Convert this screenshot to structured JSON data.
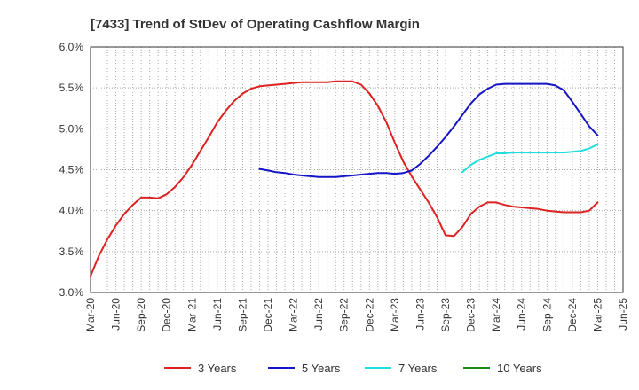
{
  "chart_data": {
    "type": "line",
    "title": "[7433]  Trend of StDev of Operating Cashflow Margin",
    "xlabel": "",
    "ylabel": "",
    "ylim": [
      3.0,
      6.0
    ],
    "y_ticks": [
      "3.0%",
      "3.5%",
      "4.0%",
      "4.5%",
      "5.0%",
      "5.5%",
      "6.0%"
    ],
    "x_ticks": [
      "Mar-20",
      "Jun-20",
      "Sep-20",
      "Dec-20",
      "Mar-21",
      "Jun-21",
      "Sep-21",
      "Dec-21",
      "Mar-22",
      "Jun-22",
      "Sep-22",
      "Dec-22",
      "Mar-23",
      "Jun-23",
      "Sep-23",
      "Dec-23",
      "Mar-24",
      "Jun-24",
      "Sep-24",
      "Dec-24",
      "Mar-25",
      "Jun-25"
    ],
    "grid": true,
    "legend_position": "bottom",
    "series": [
      {
        "name": "3 Years",
        "color": "#dd2222",
        "points": [
          [
            "Mar-20",
            3.2
          ],
          [
            "Apr-20",
            3.45
          ],
          [
            "May-20",
            3.65
          ],
          [
            "Jun-20",
            3.82
          ],
          [
            "Jul-20",
            3.96
          ],
          [
            "Aug-20",
            4.07
          ],
          [
            "Sep-20",
            4.16
          ],
          [
            "Oct-20",
            4.16
          ],
          [
            "Nov-20",
            4.15
          ],
          [
            "Dec-20",
            4.2
          ],
          [
            "Jan-21",
            4.29
          ],
          [
            "Feb-21",
            4.41
          ],
          [
            "Mar-21",
            4.56
          ],
          [
            "Apr-21",
            4.73
          ],
          [
            "May-21",
            4.9
          ],
          [
            "Jun-21",
            5.08
          ],
          [
            "Jul-21",
            5.22
          ],
          [
            "Aug-21",
            5.34
          ],
          [
            "Sep-21",
            5.43
          ],
          [
            "Oct-21",
            5.49
          ],
          [
            "Nov-21",
            5.52
          ],
          [
            "Dec-21",
            5.53
          ],
          [
            "Jan-22",
            5.54
          ],
          [
            "Feb-22",
            5.55
          ],
          [
            "Mar-22",
            5.56
          ],
          [
            "Apr-22",
            5.57
          ],
          [
            "May-22",
            5.57
          ],
          [
            "Jun-22",
            5.57
          ],
          [
            "Jul-22",
            5.57
          ],
          [
            "Aug-22",
            5.58
          ],
          [
            "Sep-22",
            5.58
          ],
          [
            "Oct-22",
            5.58
          ],
          [
            "Nov-22",
            5.54
          ],
          [
            "Dec-22",
            5.43
          ],
          [
            "Jan-23",
            5.28
          ],
          [
            "Feb-23",
            5.08
          ],
          [
            "Mar-23",
            4.83
          ],
          [
            "Apr-23",
            4.6
          ],
          [
            "May-23",
            4.42
          ],
          [
            "Jun-23",
            4.26
          ],
          [
            "Jul-23",
            4.1
          ],
          [
            "Aug-23",
            3.92
          ],
          [
            "Sep-23",
            3.7
          ],
          [
            "Oct-23",
            3.69
          ],
          [
            "Nov-23",
            3.8
          ],
          [
            "Dec-23",
            3.96
          ],
          [
            "Jan-24",
            4.05
          ],
          [
            "Feb-24",
            4.1
          ],
          [
            "Mar-24",
            4.1
          ],
          [
            "Apr-24",
            4.07
          ],
          [
            "May-24",
            4.05
          ],
          [
            "Jun-24",
            4.04
          ],
          [
            "Jul-24",
            4.03
          ],
          [
            "Aug-24",
            4.02
          ],
          [
            "Sep-24",
            4.0
          ],
          [
            "Oct-24",
            3.99
          ],
          [
            "Nov-24",
            3.98
          ],
          [
            "Dec-24",
            3.98
          ],
          [
            "Jan-25",
            3.98
          ],
          [
            "Feb-25",
            4.0
          ],
          [
            "Mar-25",
            4.1
          ]
        ]
      },
      {
        "name": "5 Years",
        "color": "#1515c8",
        "points": [
          [
            "Nov-21",
            4.51
          ],
          [
            "Dec-21",
            4.49
          ],
          [
            "Jan-22",
            4.47
          ],
          [
            "Feb-22",
            4.46
          ],
          [
            "Mar-22",
            4.44
          ],
          [
            "Apr-22",
            4.43
          ],
          [
            "May-22",
            4.42
          ],
          [
            "Jun-22",
            4.41
          ],
          [
            "Jul-22",
            4.41
          ],
          [
            "Aug-22",
            4.41
          ],
          [
            "Sep-22",
            4.42
          ],
          [
            "Oct-22",
            4.43
          ],
          [
            "Nov-22",
            4.44
          ],
          [
            "Dec-22",
            4.45
          ],
          [
            "Jan-23",
            4.46
          ],
          [
            "Feb-23",
            4.46
          ],
          [
            "Mar-23",
            4.45
          ],
          [
            "Apr-23",
            4.46
          ],
          [
            "May-23",
            4.49
          ],
          [
            "Jun-23",
            4.57
          ],
          [
            "Jul-23",
            4.67
          ],
          [
            "Aug-23",
            4.78
          ],
          [
            "Sep-23",
            4.9
          ],
          [
            "Oct-23",
            5.03
          ],
          [
            "Nov-23",
            5.17
          ],
          [
            "Dec-23",
            5.31
          ],
          [
            "Jan-24",
            5.42
          ],
          [
            "Feb-24",
            5.49
          ],
          [
            "Mar-24",
            5.54
          ],
          [
            "Apr-24",
            5.55
          ],
          [
            "May-24",
            5.55
          ],
          [
            "Jun-24",
            5.55
          ],
          [
            "Jul-24",
            5.55
          ],
          [
            "Aug-24",
            5.55
          ],
          [
            "Sep-24",
            5.55
          ],
          [
            "Oct-24",
            5.53
          ],
          [
            "Nov-24",
            5.47
          ],
          [
            "Dec-24",
            5.33
          ],
          [
            "Jan-25",
            5.18
          ],
          [
            "Feb-25",
            5.03
          ],
          [
            "Mar-25",
            4.92
          ]
        ]
      },
      {
        "name": "7 Years",
        "color": "#22dddd",
        "points": [
          [
            "Nov-23",
            4.47
          ],
          [
            "Dec-23",
            4.56
          ],
          [
            "Jan-24",
            4.62
          ],
          [
            "Feb-24",
            4.66
          ],
          [
            "Mar-24",
            4.7
          ],
          [
            "Apr-24",
            4.7
          ],
          [
            "May-24",
            4.71
          ],
          [
            "Jun-24",
            4.71
          ],
          [
            "Jul-24",
            4.71
          ],
          [
            "Aug-24",
            4.71
          ],
          [
            "Sep-24",
            4.71
          ],
          [
            "Oct-24",
            4.71
          ],
          [
            "Nov-24",
            4.71
          ],
          [
            "Dec-24",
            4.72
          ],
          [
            "Jan-25",
            4.73
          ],
          [
            "Feb-25",
            4.76
          ],
          [
            "Mar-25",
            4.81
          ]
        ]
      },
      {
        "name": "10 Years",
        "color": "#1a8a1a",
        "points": []
      }
    ]
  }
}
